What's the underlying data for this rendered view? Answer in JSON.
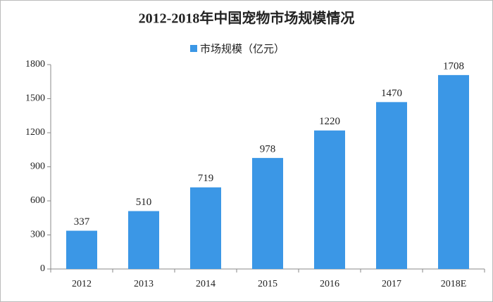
{
  "chart_data": {
    "type": "bar",
    "title": "2012-2018年中国宠物市场规模情况",
    "categories": [
      "2012",
      "2013",
      "2014",
      "2015",
      "2016",
      "2017",
      "2018E"
    ],
    "series": [
      {
        "name": "市场规模（亿元）",
        "color": "#3b97e6",
        "values": [
          337,
          510,
          719,
          978,
          1220,
          1470,
          1708
        ]
      }
    ],
    "ylim": [
      0,
      1800
    ],
    "yticks": [
      0,
      300,
      600,
      900,
      1200,
      1500,
      1800
    ],
    "grid": false,
    "legend": "top"
  }
}
